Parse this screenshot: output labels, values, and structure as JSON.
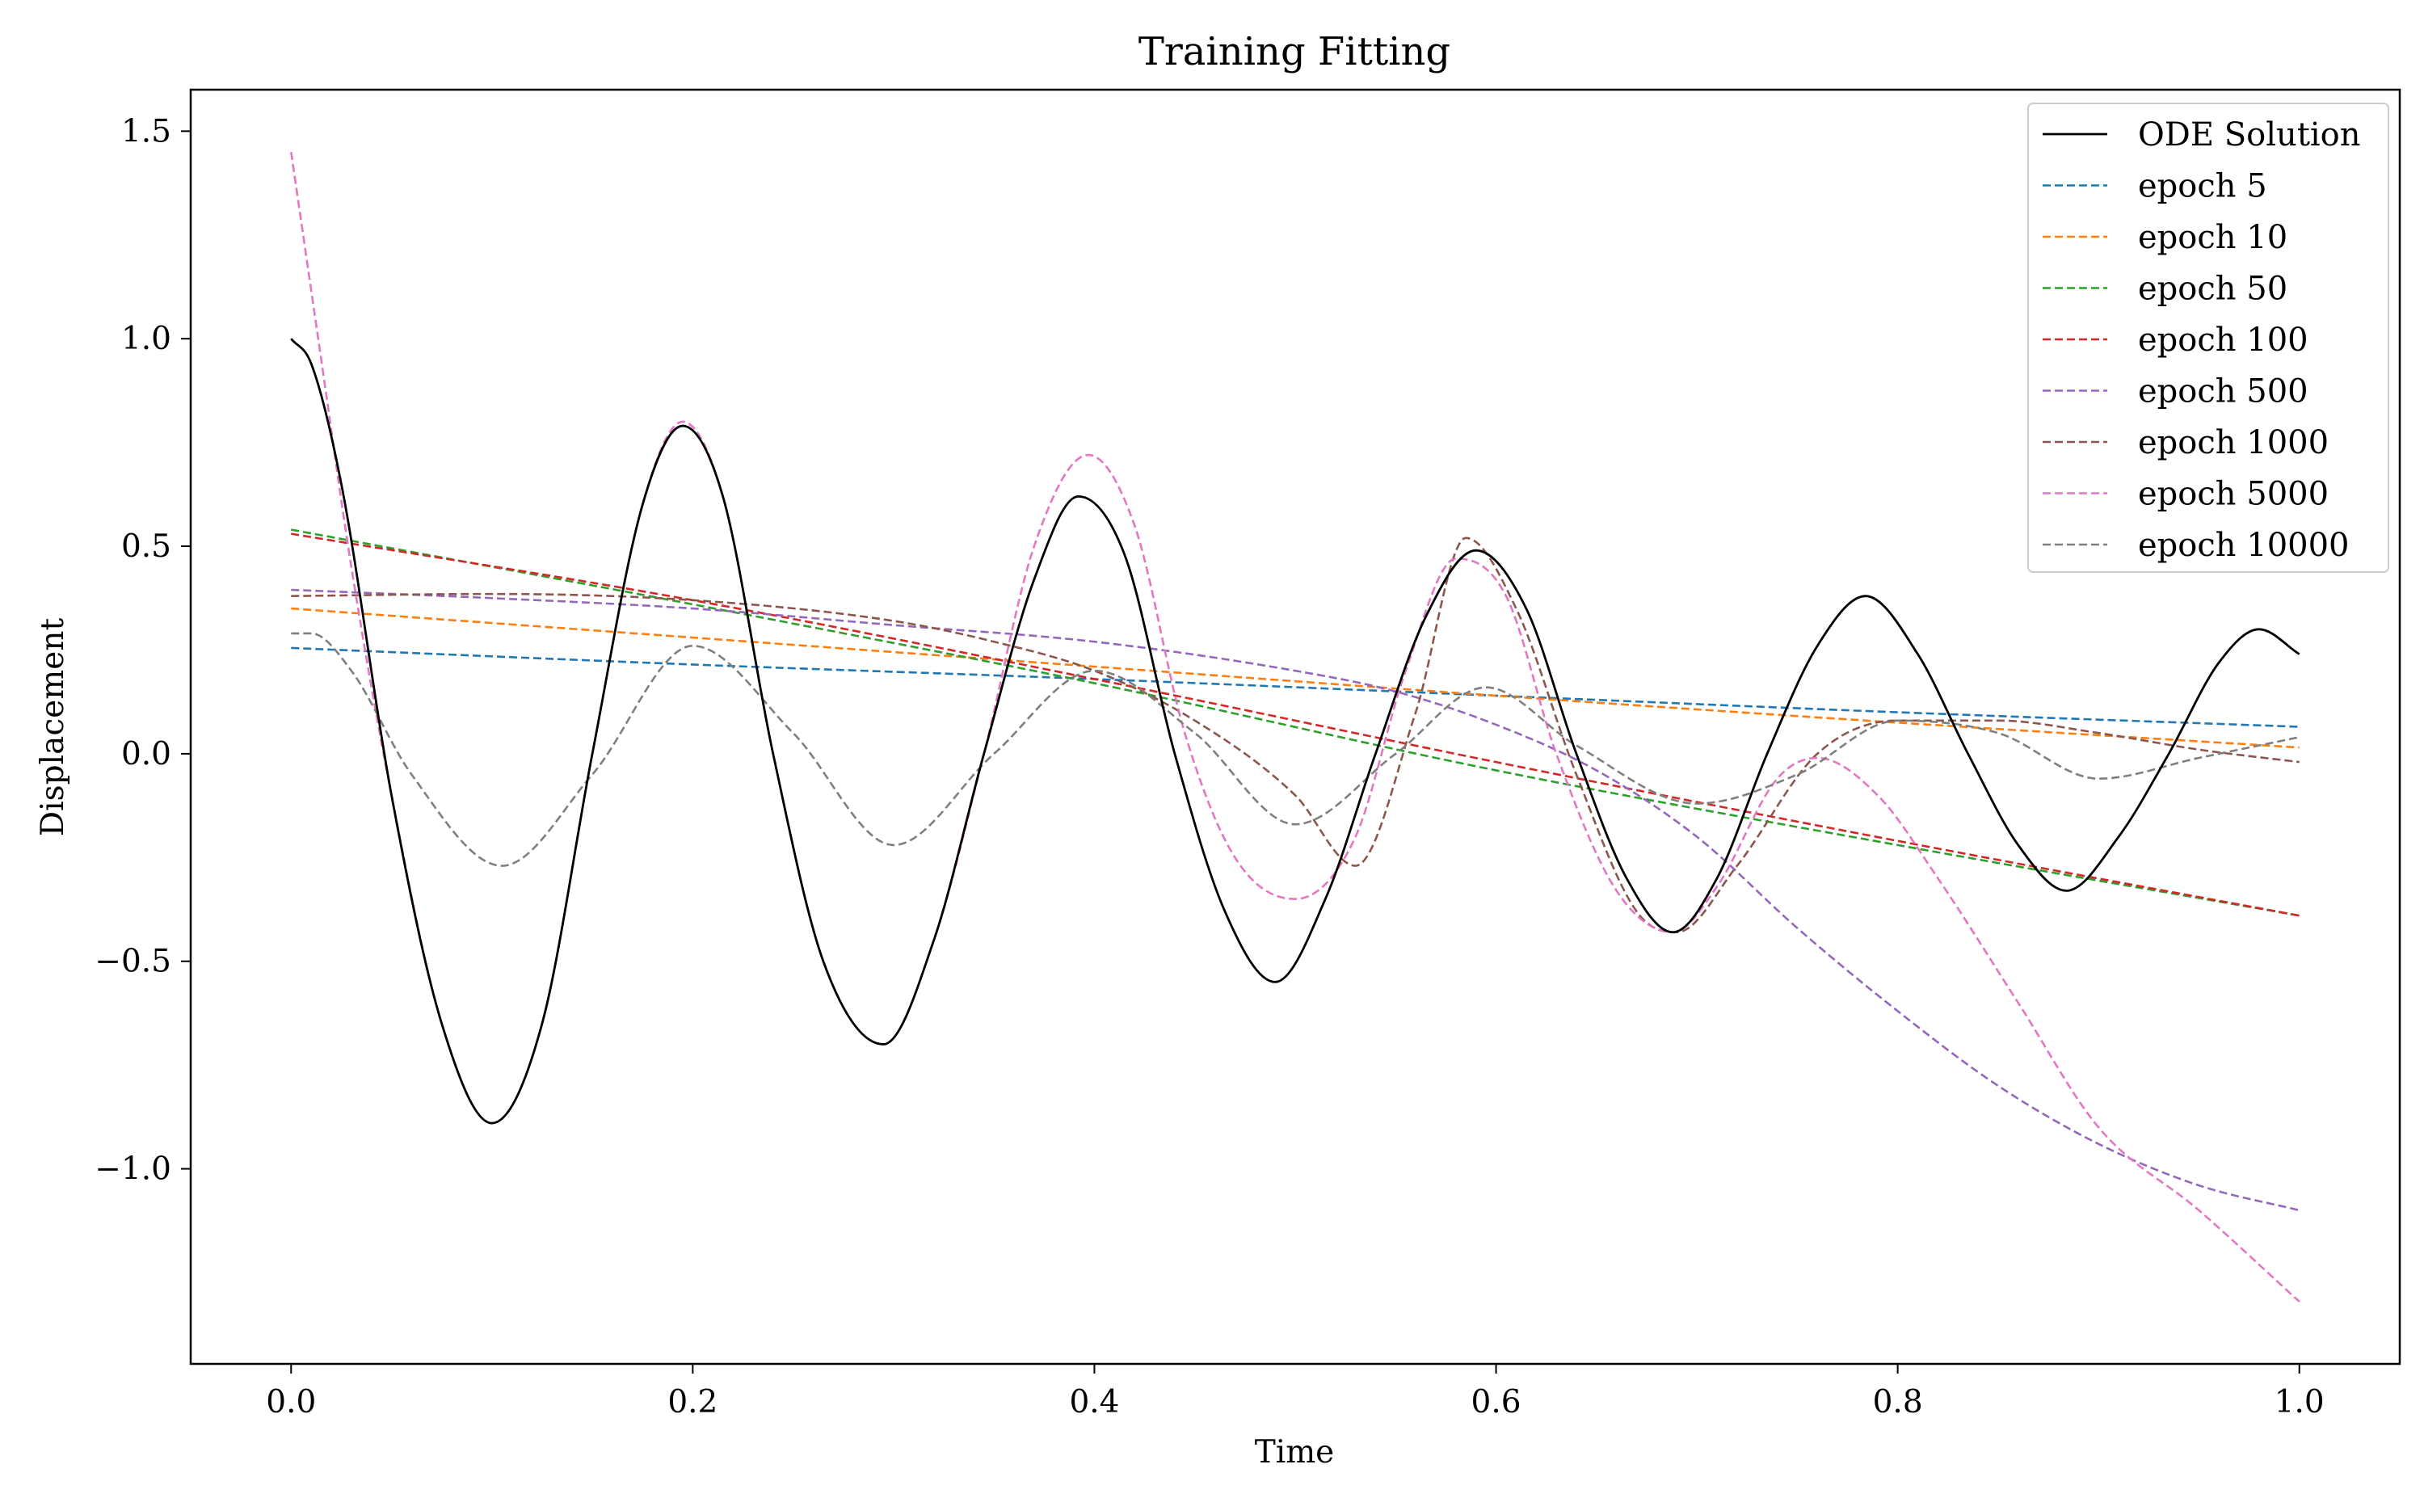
{
  "chart_data": {
    "type": "line",
    "title": "Training Fitting",
    "xlabel": "Time",
    "ylabel": "Displacement",
    "xlim": [
      -0.05,
      1.05
    ],
    "ylim": [
      -1.47,
      1.6
    ],
    "xticks": [
      0.0,
      0.2,
      0.4,
      0.6,
      0.8,
      1.0
    ],
    "xtick_labels": [
      "0.0",
      "0.2",
      "0.4",
      "0.6",
      "0.8",
      "1.0"
    ],
    "yticks": [
      -1.0,
      -0.5,
      0.0,
      0.5,
      1.0,
      1.5
    ],
    "ytick_labels": [
      "−1.0",
      "−0.5",
      "0.0",
      "0.5",
      "1.0",
      "1.5"
    ],
    "grid": false,
    "legend_position": "top-right",
    "series": [
      {
        "name": "ODE Solution",
        "color": "#000000",
        "dashed": false,
        "x": [
          0.0,
          0.01,
          0.025,
          0.05,
          0.075,
          0.1,
          0.125,
          0.15,
          0.175,
          0.195,
          0.215,
          0.24,
          0.265,
          0.295,
          0.32,
          0.345,
          0.37,
          0.392,
          0.415,
          0.44,
          0.465,
          0.49,
          0.515,
          0.54,
          0.565,
          0.59,
          0.615,
          0.64,
          0.665,
          0.688,
          0.71,
          0.735,
          0.76,
          0.784,
          0.81,
          0.835,
          0.86,
          0.884,
          0.91,
          0.935,
          0.96,
          0.98,
          1.0
        ],
        "y": [
          1.0,
          0.94,
          0.65,
          -0.1,
          -0.65,
          -0.89,
          -0.65,
          0.0,
          0.6,
          0.79,
          0.62,
          0.0,
          -0.5,
          -0.7,
          -0.45,
          0.0,
          0.42,
          0.62,
          0.48,
          0.0,
          -0.38,
          -0.55,
          -0.35,
          0.0,
          0.33,
          0.49,
          0.35,
          0.0,
          -0.3,
          -0.43,
          -0.3,
          0.0,
          0.26,
          0.38,
          0.24,
          0.0,
          -0.22,
          -0.33,
          -0.2,
          0.0,
          0.22,
          0.3,
          0.24
        ]
      },
      {
        "name": "epoch 5",
        "color": "#1f77b4",
        "dashed": true,
        "x": [
          0.0,
          0.2,
          0.4,
          0.6,
          0.8,
          1.0
        ],
        "y": [
          0.255,
          0.215,
          0.18,
          0.14,
          0.1,
          0.065
        ]
      },
      {
        "name": "epoch 10",
        "color": "#ff7f0e",
        "dashed": true,
        "x": [
          0.0,
          0.2,
          0.4,
          0.6,
          0.8,
          1.0
        ],
        "y": [
          0.35,
          0.28,
          0.21,
          0.14,
          0.075,
          0.015
        ]
      },
      {
        "name": "epoch 50",
        "color": "#2ca02c",
        "dashed": true,
        "x": [
          0.0,
          0.2,
          0.4,
          0.6,
          0.8,
          1.0
        ],
        "y": [
          0.54,
          0.36,
          0.17,
          -0.04,
          -0.22,
          -0.39
        ]
      },
      {
        "name": "epoch 100",
        "color": "#d62728",
        "dashed": true,
        "x": [
          0.0,
          0.2,
          0.4,
          0.6,
          0.8,
          1.0
        ],
        "y": [
          0.53,
          0.37,
          0.18,
          -0.02,
          -0.21,
          -0.39
        ]
      },
      {
        "name": "epoch 500",
        "color": "#9467bd",
        "dashed": true,
        "x": [
          0.0,
          0.1,
          0.2,
          0.3,
          0.4,
          0.5,
          0.55,
          0.6,
          0.65,
          0.7,
          0.75,
          0.8,
          0.85,
          0.9,
          0.95,
          1.0
        ],
        "y": [
          0.395,
          0.375,
          0.35,
          0.31,
          0.27,
          0.2,
          0.15,
          0.07,
          -0.04,
          -0.2,
          -0.42,
          -0.62,
          -0.8,
          -0.94,
          -1.04,
          -1.1
        ]
      },
      {
        "name": "epoch 1000",
        "color": "#8c564b",
        "dashed": true,
        "x": [
          0.0,
          0.1,
          0.2,
          0.3,
          0.35,
          0.4,
          0.45,
          0.5,
          0.53,
          0.56,
          0.585,
          0.61,
          0.64,
          0.67,
          0.69,
          0.72,
          0.76,
          0.8,
          0.85,
          0.9,
          0.95,
          1.0
        ],
        "y": [
          0.38,
          0.385,
          0.37,
          0.32,
          0.27,
          0.2,
          0.08,
          -0.1,
          -0.27,
          0.1,
          0.52,
          0.35,
          -0.05,
          -0.38,
          -0.43,
          -0.27,
          0.0,
          0.08,
          0.08,
          0.05,
          0.01,
          -0.02
        ]
      },
      {
        "name": "epoch 5000",
        "color": "#e377c2",
        "dashed": true,
        "x": [
          0.0,
          0.015,
          0.03,
          0.05,
          0.075,
          0.1,
          0.125,
          0.15,
          0.175,
          0.195,
          0.215,
          0.24,
          0.265,
          0.295,
          0.32,
          0.345,
          0.37,
          0.397,
          0.42,
          0.445,
          0.47,
          0.5,
          0.53,
          0.555,
          0.58,
          0.605,
          0.63,
          0.66,
          0.688,
          0.71,
          0.74,
          0.76,
          0.79,
          0.82,
          0.86,
          0.9,
          0.95,
          1.0
        ],
        "y": [
          1.45,
          0.95,
          0.45,
          -0.1,
          -0.65,
          -0.89,
          -0.65,
          0.0,
          0.6,
          0.8,
          0.62,
          0.0,
          -0.5,
          -0.7,
          -0.45,
          0.0,
          0.5,
          0.72,
          0.55,
          0.05,
          -0.25,
          -0.35,
          -0.2,
          0.2,
          0.47,
          0.38,
          0.0,
          -0.33,
          -0.43,
          -0.32,
          -0.06,
          -0.01,
          -0.1,
          -0.3,
          -0.6,
          -0.9,
          -1.1,
          -1.32
        ]
      },
      {
        "name": "epoch 10000",
        "color": "#7f7f7f",
        "dashed": true,
        "x": [
          0.0,
          0.01,
          0.03,
          0.06,
          0.105,
          0.15,
          0.2,
          0.25,
          0.3,
          0.35,
          0.4,
          0.45,
          0.5,
          0.55,
          0.595,
          0.64,
          0.7,
          0.75,
          0.8,
          0.85,
          0.9,
          0.95,
          1.0
        ],
        "y": [
          0.29,
          0.29,
          0.2,
          -0.05,
          -0.27,
          -0.05,
          0.26,
          0.05,
          -0.22,
          0.0,
          0.2,
          0.05,
          -0.17,
          0.0,
          0.16,
          0.02,
          -0.12,
          -0.05,
          0.08,
          0.05,
          -0.06,
          -0.01,
          0.04
        ]
      }
    ]
  }
}
